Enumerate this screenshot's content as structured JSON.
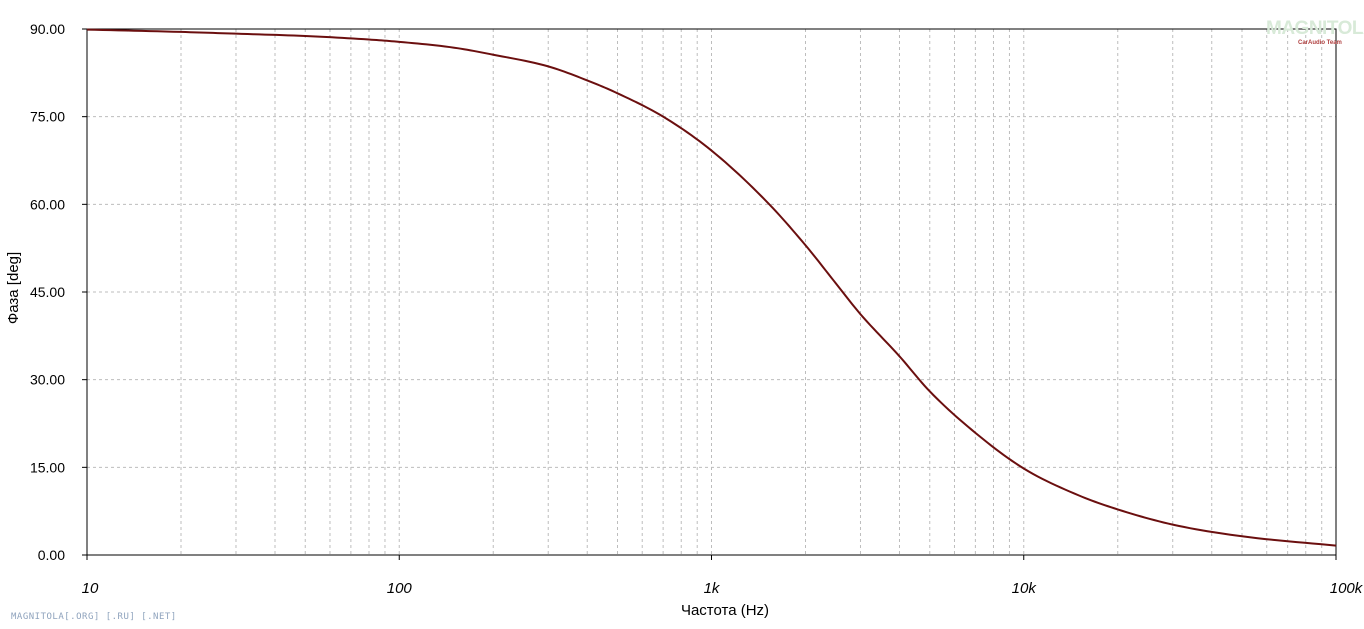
{
  "chart_data": {
    "type": "line",
    "xlabel": "Частота (Hz)",
    "ylabel": "Фаза [deg]",
    "x_scale": "log",
    "xlim": [
      10,
      100000
    ],
    "ylim": [
      0,
      90
    ],
    "x_ticks": [
      {
        "value": 10,
        "label": "10"
      },
      {
        "value": 100,
        "label": "100"
      },
      {
        "value": 1000,
        "label": "1k"
      },
      {
        "value": 10000,
        "label": "10k"
      },
      {
        "value": 100000,
        "label": "100k"
      }
    ],
    "y_ticks": [
      {
        "value": 0,
        "label": "0.00"
      },
      {
        "value": 15,
        "label": "15.00"
      },
      {
        "value": 30,
        "label": "30.00"
      },
      {
        "value": 45,
        "label": "45.00"
      },
      {
        "value": 60,
        "label": "60.00"
      },
      {
        "value": 75,
        "label": "75.00"
      },
      {
        "value": 90,
        "label": "90.00"
      }
    ],
    "grid": true,
    "series": [
      {
        "color": "#6b0f0f",
        "x": [
          10,
          20,
          30,
          50,
          80,
          100,
          150,
          200,
          300,
          400,
          500,
          700,
          1000,
          1500,
          2000,
          2500,
          3000,
          4000,
          5000,
          7000,
          10000,
          15000,
          20000,
          30000,
          50000,
          100000
        ],
        "y": [
          89.9,
          89.5,
          89.2,
          88.8,
          88.2,
          87.8,
          86.8,
          85.6,
          83.6,
          81.2,
          79.0,
          75.0,
          69.2,
          60.5,
          53.0,
          46.5,
          41.2,
          34.0,
          28.0,
          20.9,
          14.8,
          10.2,
          7.8,
          5.2,
          3.2,
          1.6
        ]
      }
    ]
  },
  "watermark": {
    "bottom_text": "MAGNITOLA[.ORG] [.RU] [.NET]",
    "logo_text": "MAGNITOLA",
    "logo_subtext": "CarAudio Team"
  }
}
